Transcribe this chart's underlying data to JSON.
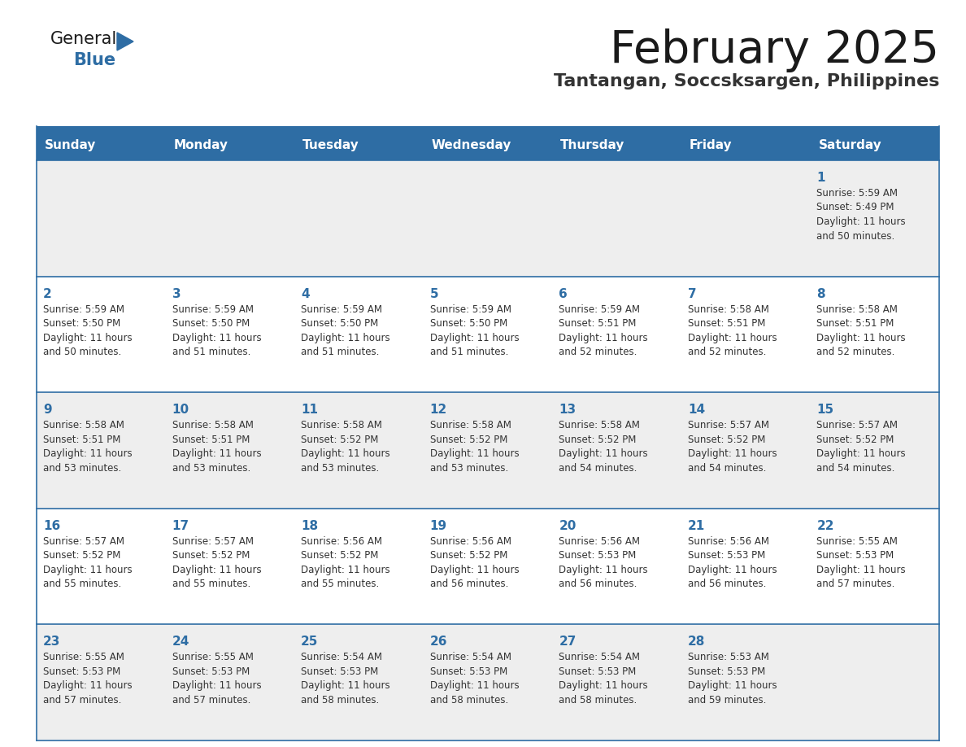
{
  "title": "February 2025",
  "subtitle": "Tantangan, Soccsksargen, Philippines",
  "days_of_week": [
    "Sunday",
    "Monday",
    "Tuesday",
    "Wednesday",
    "Thursday",
    "Friday",
    "Saturday"
  ],
  "header_bg": "#2e6da4",
  "header_text": "#ffffff",
  "row0_bg": "#e8e8e8",
  "row1_bg": "#ffffff",
  "row2_bg": "#e8e8e8",
  "row3_bg": "#ffffff",
  "row4_bg": "#e8e8e8",
  "day_number_color": "#2e6da4",
  "cell_text_color": "#333333",
  "title_color": "#1a1a1a",
  "subtitle_color": "#333333",
  "logo_general_color": "#1a1a1a",
  "logo_blue_color": "#2e6da4",
  "separator_color": "#2e6da4",
  "calendar_data": [
    [
      null,
      null,
      null,
      null,
      null,
      null,
      {
        "day": 1,
        "sunrise": "5:59 AM",
        "sunset": "5:49 PM",
        "daylight_hours": 11,
        "daylight_mins": 50
      }
    ],
    [
      {
        "day": 2,
        "sunrise": "5:59 AM",
        "sunset": "5:50 PM",
        "daylight_hours": 11,
        "daylight_mins": 50
      },
      {
        "day": 3,
        "sunrise": "5:59 AM",
        "sunset": "5:50 PM",
        "daylight_hours": 11,
        "daylight_mins": 51
      },
      {
        "day": 4,
        "sunrise": "5:59 AM",
        "sunset": "5:50 PM",
        "daylight_hours": 11,
        "daylight_mins": 51
      },
      {
        "day": 5,
        "sunrise": "5:59 AM",
        "sunset": "5:50 PM",
        "daylight_hours": 11,
        "daylight_mins": 51
      },
      {
        "day": 6,
        "sunrise": "5:59 AM",
        "sunset": "5:51 PM",
        "daylight_hours": 11,
        "daylight_mins": 52
      },
      {
        "day": 7,
        "sunrise": "5:58 AM",
        "sunset": "5:51 PM",
        "daylight_hours": 11,
        "daylight_mins": 52
      },
      {
        "day": 8,
        "sunrise": "5:58 AM",
        "sunset": "5:51 PM",
        "daylight_hours": 11,
        "daylight_mins": 52
      }
    ],
    [
      {
        "day": 9,
        "sunrise": "5:58 AM",
        "sunset": "5:51 PM",
        "daylight_hours": 11,
        "daylight_mins": 53
      },
      {
        "day": 10,
        "sunrise": "5:58 AM",
        "sunset": "5:51 PM",
        "daylight_hours": 11,
        "daylight_mins": 53
      },
      {
        "day": 11,
        "sunrise": "5:58 AM",
        "sunset": "5:52 PM",
        "daylight_hours": 11,
        "daylight_mins": 53
      },
      {
        "day": 12,
        "sunrise": "5:58 AM",
        "sunset": "5:52 PM",
        "daylight_hours": 11,
        "daylight_mins": 53
      },
      {
        "day": 13,
        "sunrise": "5:58 AM",
        "sunset": "5:52 PM",
        "daylight_hours": 11,
        "daylight_mins": 54
      },
      {
        "day": 14,
        "sunrise": "5:57 AM",
        "sunset": "5:52 PM",
        "daylight_hours": 11,
        "daylight_mins": 54
      },
      {
        "day": 15,
        "sunrise": "5:57 AM",
        "sunset": "5:52 PM",
        "daylight_hours": 11,
        "daylight_mins": 54
      }
    ],
    [
      {
        "day": 16,
        "sunrise": "5:57 AM",
        "sunset": "5:52 PM",
        "daylight_hours": 11,
        "daylight_mins": 55
      },
      {
        "day": 17,
        "sunrise": "5:57 AM",
        "sunset": "5:52 PM",
        "daylight_hours": 11,
        "daylight_mins": 55
      },
      {
        "day": 18,
        "sunrise": "5:56 AM",
        "sunset": "5:52 PM",
        "daylight_hours": 11,
        "daylight_mins": 55
      },
      {
        "day": 19,
        "sunrise": "5:56 AM",
        "sunset": "5:52 PM",
        "daylight_hours": 11,
        "daylight_mins": 56
      },
      {
        "day": 20,
        "sunrise": "5:56 AM",
        "sunset": "5:53 PM",
        "daylight_hours": 11,
        "daylight_mins": 56
      },
      {
        "day": 21,
        "sunrise": "5:56 AM",
        "sunset": "5:53 PM",
        "daylight_hours": 11,
        "daylight_mins": 56
      },
      {
        "day": 22,
        "sunrise": "5:55 AM",
        "sunset": "5:53 PM",
        "daylight_hours": 11,
        "daylight_mins": 57
      }
    ],
    [
      {
        "day": 23,
        "sunrise": "5:55 AM",
        "sunset": "5:53 PM",
        "daylight_hours": 11,
        "daylight_mins": 57
      },
      {
        "day": 24,
        "sunrise": "5:55 AM",
        "sunset": "5:53 PM",
        "daylight_hours": 11,
        "daylight_mins": 57
      },
      {
        "day": 25,
        "sunrise": "5:54 AM",
        "sunset": "5:53 PM",
        "daylight_hours": 11,
        "daylight_mins": 58
      },
      {
        "day": 26,
        "sunrise": "5:54 AM",
        "sunset": "5:53 PM",
        "daylight_hours": 11,
        "daylight_mins": 58
      },
      {
        "day": 27,
        "sunrise": "5:54 AM",
        "sunset": "5:53 PM",
        "daylight_hours": 11,
        "daylight_mins": 58
      },
      {
        "day": 28,
        "sunrise": "5:53 AM",
        "sunset": "5:53 PM",
        "daylight_hours": 11,
        "daylight_mins": 59
      },
      null
    ]
  ],
  "row_bgs": [
    "#eeeeee",
    "#ffffff",
    "#eeeeee",
    "#ffffff",
    "#eeeeee"
  ]
}
